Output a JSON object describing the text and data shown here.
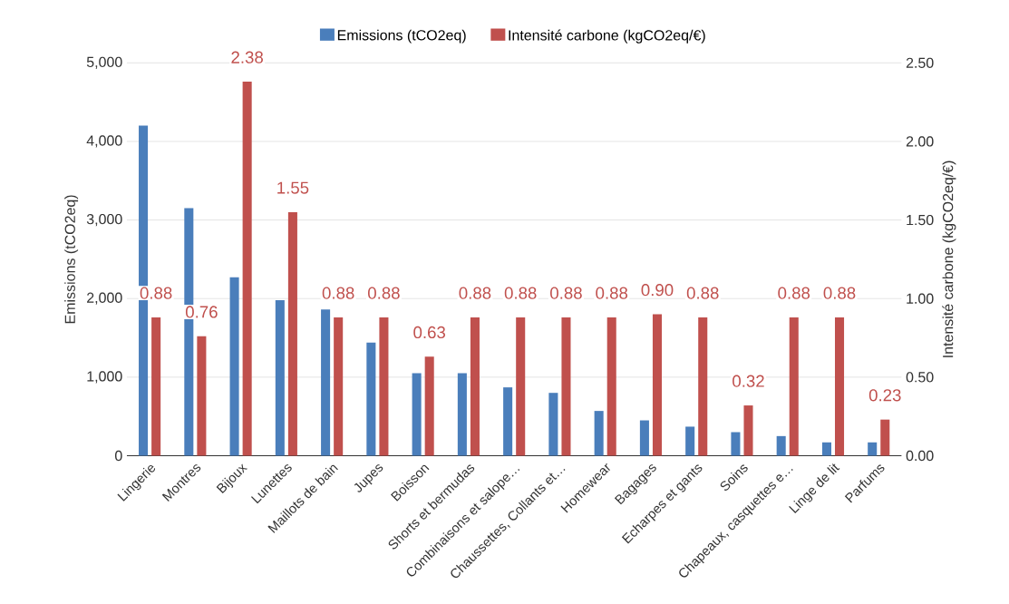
{
  "chart_data": {
    "type": "bar",
    "categories": [
      "Lingerie",
      "Montres",
      "Bijoux",
      "Lunettes",
      "Maillots de bain",
      "Jupes",
      "Boisson",
      "Shorts et bermudas",
      "Combinaisons et salope…",
      "Chaussettes, Collants et…",
      "Homewear",
      "Bagages",
      "Echarpes et gants",
      "Soins",
      "Chapeaux, casquettes e…",
      "Linge de lit",
      "Parfums"
    ],
    "series": [
      {
        "name": "Emissions (tCO2eq)",
        "color": "#4a7ebb",
        "values": [
          4200,
          3150,
          2270,
          1980,
          1860,
          1440,
          1050,
          1050,
          870,
          800,
          570,
          450,
          370,
          300,
          250,
          170,
          170
        ]
      },
      {
        "name": "Intensité carbone (kgCO2eq/€)",
        "color": "#c0504d",
        "axis": "y2",
        "values": [
          0.88,
          0.76,
          2.38,
          1.55,
          0.88,
          0.88,
          0.63,
          0.88,
          0.88,
          0.88,
          0.88,
          0.9,
          0.88,
          0.32,
          0.88,
          0.88,
          0.23
        ],
        "value_labels": [
          "0.88",
          "0.76",
          "2.38",
          "1.55",
          "0.88",
          "0.88",
          "0.63",
          "0.88",
          "0.88",
          "0.88",
          "0.88",
          "0.90",
          "0.88",
          "0.32",
          "0.88",
          "0.88",
          "0.23"
        ]
      }
    ],
    "ylabel": "Emissions (tCO2eq)",
    "y2label": "Intensité carbone (kgCO2eq/€)",
    "ylim": [
      0,
      5000
    ],
    "yticks": [
      0,
      {
        "value": 1000,
        "label": "1,000"
      },
      {
        "value": 2000,
        "label": "2,000"
      },
      {
        "value": 3000,
        "label": "3,000"
      },
      {
        "value": 4000,
        "label": "4,000"
      },
      {
        "value": 5000,
        "label": "5,000"
      }
    ],
    "y2lim": [
      0,
      2.5
    ],
    "y2ticks": [
      {
        "value": 0,
        "label": "0.00"
      },
      {
        "value": 0.5,
        "label": "0.50"
      },
      {
        "value": 1,
        "label": "1.00"
      },
      {
        "value": 1.5,
        "label": "1.50"
      },
      {
        "value": 2,
        "label": "2.00"
      },
      {
        "value": 2.5,
        "label": "2.50"
      }
    ],
    "grid": "y",
    "legend": "top"
  }
}
